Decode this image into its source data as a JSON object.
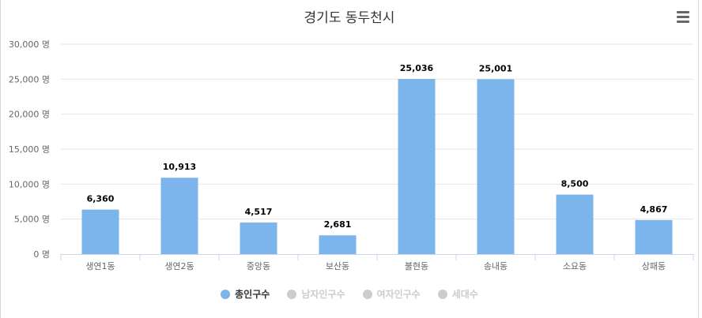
{
  "chart_data": {
    "type": "bar",
    "title": "경기도 동두천시",
    "categories": [
      "생연1동",
      "생연2동",
      "중앙동",
      "보산동",
      "불현동",
      "송내동",
      "소요동",
      "상패동"
    ],
    "series": [
      {
        "name": "총인구수",
        "values": [
          6360,
          10913,
          4517,
          2681,
          25036,
          25001,
          8500,
          4867
        ],
        "value_labels": [
          "6,360",
          "10,913",
          "4,517",
          "2,681",
          "25,036",
          "25,001",
          "8,500",
          "4,867"
        ],
        "color": "#7cb5ec"
      }
    ],
    "ylim": [
      0,
      30000
    ],
    "yticks": [
      0,
      5000,
      10000,
      15000,
      20000,
      25000,
      30000
    ],
    "ytick_labels": [
      "0 명",
      "5,000 명",
      "10,000 명",
      "15,000 명",
      "20,000 명",
      "25,000 명",
      "30,000 명"
    ],
    "grid": true,
    "legend_position": "bottom",
    "legend": [
      {
        "label": "총인구수",
        "color": "#7cb5ec",
        "active": true
      },
      {
        "label": "남자인구수",
        "color": "#cccccc",
        "active": false
      },
      {
        "label": "여자인구수",
        "color": "#cccccc",
        "active": false
      },
      {
        "label": "세대수",
        "color": "#cccccc",
        "active": false
      }
    ],
    "legend_active_text_color": "#333333",
    "legend_inactive_text_color": "#cccccc"
  },
  "menu": {
    "icon": "menu-icon"
  }
}
